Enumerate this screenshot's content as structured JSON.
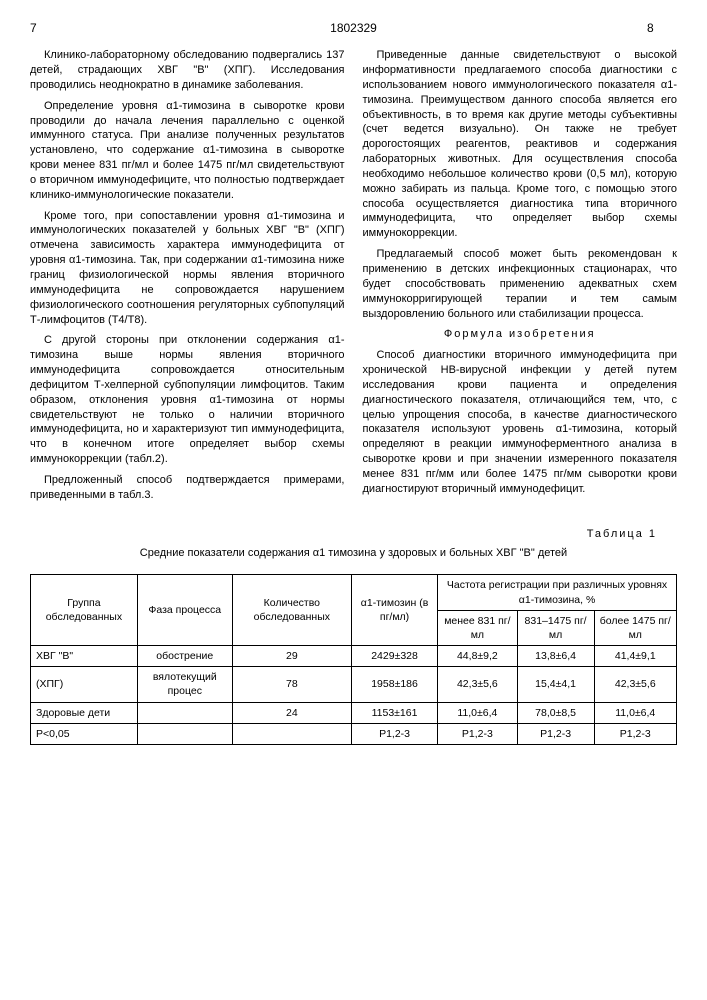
{
  "header": {
    "pageLeft": "7",
    "docNum": "1802329",
    "pageRight": "8"
  },
  "col1": {
    "p1": "Клинико-лабораторному обследованию подвергались 137 детей, страдающих ХВГ \"В\" (ХПГ). Исследования проводились неоднократно в динамике заболевания.",
    "p2": "Определение уровня α1-тимозина в сыворотке крови проводили до начала лечения параллельно с оценкой иммунного статуса. При анализе полученных результатов установлено, что содержание α1-тимозина в сыворотке крови менее 831 пг/мл и более 1475 пг/мл свидетельствуют о вторичном иммунодефиците, что полностью подтверждает клинико-иммунологические показатели.",
    "p3": "Кроме того, при сопоставлении уровня α1-тимозина и иммунологических показателей у больных ХВГ \"В\" (ХПГ) отмечена зависимость характера иммунодефицита от уровня α1-тимозина. Так, при содержании α1-тимозина ниже границ физиологической нормы явления вторичного иммунодефицита не сопровождается нарушением физиологического соотношения регуляторных субпопуляций Т-лимфоцитов (Т4/Т8).",
    "p4": "С другой стороны при отклонении содержания α1-тимозина выше нормы явления вторичного иммунодефицита сопровождается относительным дефицитом Т-хелперной субпопуляции лимфоцитов. Таким образом, отклонения уровня α1-тимозина от нормы свидетельствуют не только о наличии вторичного иммунодефицита, но и характеризуют тип иммунодефицита, что в конечном итоге определяет выбор схемы иммунокоррекции (табл.2).",
    "p5": "Предложенный способ подтверждается примерами, приведенными в табл.3."
  },
  "col2": {
    "p1": "Приведенные данные свидетельствуют о высокой информативности предлагаемого способа диагностики с использованием нового иммунологического показателя α1-тимозина. Преимуществом данного способа является его объективность, в то время как другие методы субъективны (счет ведется визуально). Он также не требует дорогостоящих реагентов, реактивов и содержания лабораторных животных. Для осуществления способа необходимо небольшое количество крови (0,5 мл), которую можно забирать из пальца. Кроме того, с помощью этого способа осуществляется диагностика типа вторичного иммунодефицита, что определяет выбор схемы иммунокоррекции.",
    "p2": "Предлагаемый способ может быть рекомендован к применению в детских инфекционных стационарах, что будет способствовать применению адекватных схем иммунокорригирующей терапии и тем самым выздоровлению больного или стабилизации процесса.",
    "formula": "Формула изобретения",
    "p3": "Способ диагностики вторичного иммунодефицита при хронической НВ-вирусной инфекции у детей путем исследования крови пациента и определения диагностического показателя, отличающийся тем, что, с целью упрощения способа, в качестве диагностического показателя используют уровень α1-тимозина, который определяют в реакции иммуноферментного анализа в сыворотке крови и при значении измеренного показателя менее 831 пг/мм или более 1475 пг/мм сыворотки крови диагностируют вторичный иммунодефицит."
  },
  "lineMarkers": {
    "m5": "5",
    "m10": "10",
    "m15": "15",
    "m20": "20",
    "m25": "25",
    "m30": "30",
    "m35": "35",
    "m40": "40"
  },
  "table": {
    "captionNum": "Таблица 1",
    "caption": "Средние показатели содержания α1 тимозина у здоровых и больных ХВГ \"В\" детей",
    "headers": {
      "h1": "Группа обследованных",
      "h2": "Фаза процесса",
      "h3": "Количество обследованных",
      "h4": "α1-тимозин (в пг/мл)",
      "h5": "Частота регистрации при различных уровнях α1-тимозина, %",
      "sub1": "менее 831 пг/мл",
      "sub2": "831–1475 пг/мл",
      "sub3": "более 1475 пг/мл"
    },
    "rows": [
      {
        "c1": "ХВГ \"В\"",
        "c2": "обострение",
        "c3": "29",
        "c4": "2429±328",
        "c5": "44,8±9,2",
        "c6": "13,8±6,4",
        "c7": "41,4±9,1"
      },
      {
        "c1": "(ХПГ)",
        "c2": "вялотекущий процес",
        "c3": "78",
        "c4": "1958±186",
        "c5": "42,3±5,6",
        "c6": "15,4±4,1",
        "c7": "42,3±5,6"
      },
      {
        "c1": "Здоровые дети",
        "c2": "",
        "c3": "24",
        "c4": "1153±161",
        "c5": "11,0±6,4",
        "c6": "78,0±8,5",
        "c7": "11,0±6,4"
      },
      {
        "c1": "P<0,05",
        "c2": "",
        "c3": "",
        "c4": "P1,2-3",
        "c5": "P1,2-3",
        "c6": "P1,2-3",
        "c7": "P1,2-3"
      }
    ]
  }
}
